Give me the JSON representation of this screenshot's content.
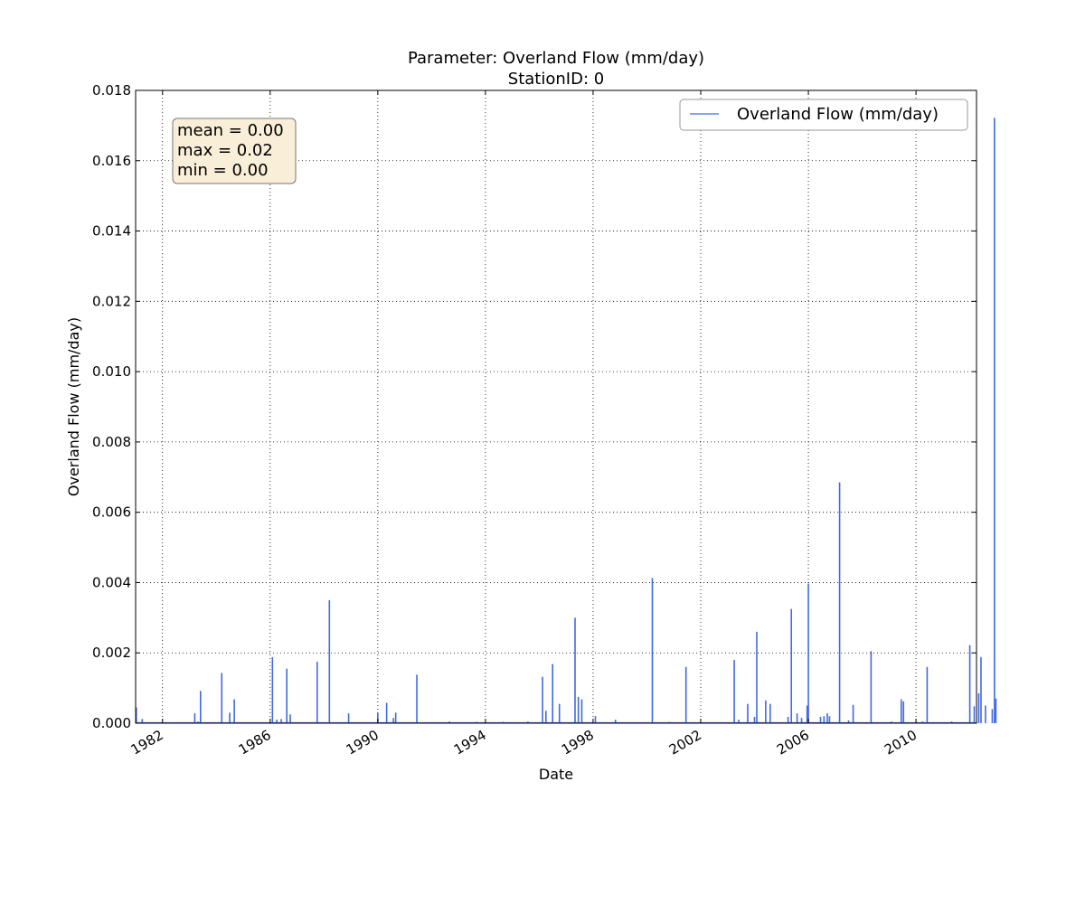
{
  "chart_data": {
    "type": "line",
    "title": "Parameter: Overland Flow (mm/day)",
    "subtitle": "StationID: 0",
    "xlabel": "Date",
    "ylabel": "Overland Flow (mm/day)",
    "xlim": [
      "1981-01-01",
      "2012-04-01"
    ],
    "ylim": [
      0,
      0.018
    ],
    "x_ticks": [
      "1982-01-01",
      "1986-01-01",
      "1990-01-01",
      "1994-01-01",
      "1998-01-01",
      "2002-01-01",
      "2006-01-01",
      "2010-01-01"
    ],
    "x_tick_labels": [
      "1982",
      "1986",
      "1990",
      "1994",
      "1998",
      "2002",
      "2006",
      "2010"
    ],
    "y_ticks": [
      0,
      0.002,
      0.004,
      0.006,
      0.008,
      0.01,
      0.012,
      0.014,
      0.016,
      0.018
    ],
    "y_tick_labels": [
      "0.000",
      "0.002",
      "0.004",
      "0.006",
      "0.008",
      "0.010",
      "0.012",
      "0.014",
      "0.016",
      "0.018"
    ],
    "grid": true,
    "legend_position": "top-right",
    "series": [
      {
        "name": "Overland Flow (mm/day)",
        "color": "#4169e1",
        "points": [
          [
            "1981-01-10",
            0.00045
          ],
          [
            "1981-04-01",
            0.00012
          ],
          [
            "1983-03-15",
            0.00028
          ],
          [
            "1983-06-01",
            0.00092
          ],
          [
            "1983-05-01",
            5e-05
          ],
          [
            "1984-03-15",
            0.00143
          ],
          [
            "1984-07-01",
            0.0003
          ],
          [
            "1984-09-01",
            0.00068
          ],
          [
            "1986-02-01",
            0.00188
          ],
          [
            "1986-04-01",
            0.0001
          ],
          [
            "1986-06-01",
            0.00012
          ],
          [
            "1986-08-15",
            0.00155
          ],
          [
            "1986-10-01",
            0.00025
          ],
          [
            "1987-10-01",
            0.00175
          ],
          [
            "1988-03-15",
            0.0035
          ],
          [
            "1988-12-01",
            0.00028
          ],
          [
            "1990-01-01",
            0.0003
          ],
          [
            "1990-05-01",
            0.00058
          ],
          [
            "1990-08-01",
            0.00015
          ],
          [
            "1990-09-01",
            0.0003
          ],
          [
            "1991-06-15",
            0.00138
          ],
          [
            "1992-09-01",
            5e-05
          ],
          [
            "1993-09-01",
            4e-05
          ],
          [
            "1994-09-01",
            4e-05
          ],
          [
            "1995-08-01",
            5e-05
          ],
          [
            "1996-02-15",
            0.00132
          ],
          [
            "1996-04-01",
            0.00035
          ],
          [
            "1996-07-01",
            0.00168
          ],
          [
            "1996-10-01",
            0.00055
          ],
          [
            "1997-05-01",
            0.003
          ],
          [
            "1997-06-15",
            0.00075
          ],
          [
            "1997-08-01",
            0.00068
          ],
          [
            "1998-02-01",
            0.0002
          ],
          [
            "1998-11-01",
            0.0001
          ],
          [
            "2000-03-15",
            0.00413
          ],
          [
            "2000-11-01",
            4e-05
          ],
          [
            "2001-06-15",
            0.0016
          ],
          [
            "2003-04-01",
            0.0018
          ],
          [
            "2003-06-01",
            0.0001
          ],
          [
            "2003-10-01",
            0.00055
          ],
          [
            "2004-01-01",
            0.00018
          ],
          [
            "2004-02-01",
            0.0026
          ],
          [
            "2004-06-01",
            0.00065
          ],
          [
            "2004-08-01",
            0.00055
          ],
          [
            "2005-04-01",
            0.00018
          ],
          [
            "2005-05-15",
            0.00325
          ],
          [
            "2005-08-01",
            0.00028
          ],
          [
            "2005-10-01",
            0.00015
          ],
          [
            "2005-12-15",
            0.0005
          ],
          [
            "2006-01-01",
            0.00397
          ],
          [
            "2006-06-15",
            0.00018
          ],
          [
            "2006-08-01",
            0.0002
          ],
          [
            "2006-09-15",
            0.00028
          ],
          [
            "2006-10-15",
            0.0002
          ],
          [
            "2007-03-01",
            0.00685
          ],
          [
            "2007-07-01",
            8e-05
          ],
          [
            "2007-09-01",
            0.00052
          ],
          [
            "2008-05-01",
            0.00205
          ],
          [
            "2009-02-01",
            5e-05
          ],
          [
            "2009-06-15",
            0.00068
          ],
          [
            "2009-07-15",
            0.00062
          ],
          [
            "2010-04-01",
            5e-05
          ],
          [
            "2010-06-01",
            0.0016
          ],
          [
            "2011-05-01",
            5e-05
          ],
          [
            "2012-01-01",
            0.00222
          ],
          [
            "2012-03-01",
            0.00048
          ],
          [
            "2012-05-01",
            0.00085
          ],
          [
            "2012-06-01",
            0.00188
          ],
          [
            "2012-08-01",
            0.0005
          ],
          [
            "2012-11-01",
            0.0004
          ],
          [
            "2012-12-01",
            0.01722
          ],
          [
            "2012-12-20",
            0.0007
          ]
        ]
      }
    ],
    "stats_box": {
      "lines": [
        "mean = 0.00",
        "max = 0.02",
        "min = 0.00"
      ],
      "fill": "#f9eed8"
    }
  }
}
